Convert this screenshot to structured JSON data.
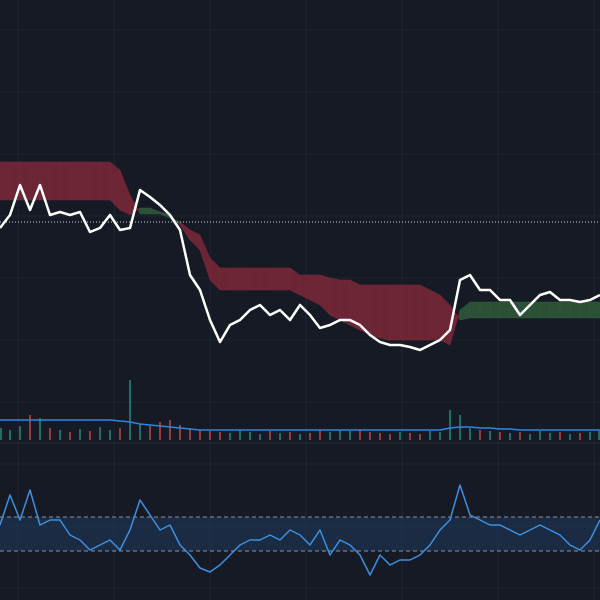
{
  "chart_data": [
    {
      "type": "line",
      "ylim": [
        0,
        440
      ],
      "series": [
        {
          "name": "price",
          "color": "#ffffff",
          "values": [
            212,
            225,
            255,
            230,
            255,
            225,
            228,
            225,
            228,
            208,
            212,
            225,
            210,
            212,
            250,
            243,
            235,
            225,
            210,
            165,
            150,
            120,
            98,
            115,
            120,
            130,
            135,
            125,
            130,
            120,
            135,
            125,
            112,
            115,
            120,
            120,
            115,
            105,
            98,
            95,
            95,
            93,
            90,
            95,
            100,
            110,
            160,
            165,
            150,
            150,
            140,
            140,
            125,
            135,
            145,
            148,
            140,
            140,
            138,
            140,
            145
          ]
        },
        {
          "name": "span_a",
          "color": "#2f5a3a",
          "values": [
            240,
            240,
            240,
            240,
            240,
            240,
            240,
            240,
            240,
            240,
            240,
            240,
            230,
            225,
            232,
            232,
            228,
            225,
            215,
            200,
            190,
            160,
            150,
            150,
            150,
            150,
            150,
            150,
            150,
            150,
            145,
            140,
            135,
            125,
            120,
            115,
            110,
            105,
            102,
            100,
            100,
            100,
            100,
            100,
            100,
            95,
            130,
            138,
            138,
            138,
            138,
            138,
            138,
            138,
            138,
            138,
            138,
            138,
            138,
            138,
            138
          ]
        },
        {
          "name": "span_b",
          "color": "#7a2838",
          "values": [
            278,
            278,
            278,
            278,
            278,
            278,
            278,
            278,
            278,
            278,
            278,
            278,
            270,
            245,
            226,
            226,
            226,
            222,
            218,
            210,
            205,
            182,
            172,
            172,
            172,
            172,
            172,
            172,
            172,
            172,
            165,
            165,
            165,
            162,
            160,
            160,
            155,
            155,
            155,
            155,
            155,
            155,
            155,
            150,
            145,
            135,
            120,
            122,
            122,
            122,
            122,
            122,
            122,
            122,
            122,
            122,
            122,
            122,
            122,
            122,
            122
          ]
        }
      ],
      "reference_line": 218
    },
    {
      "type": "bar",
      "ylim": [
        0,
        80
      ],
      "up_color": "#26a69a",
      "down_color": "#ef5350",
      "values": [
        12,
        10,
        14,
        25,
        22,
        12,
        10,
        8,
        11,
        9,
        13,
        10,
        12,
        60,
        16,
        14,
        18,
        20,
        15,
        12,
        10,
        9,
        8,
        7,
        10,
        8,
        6,
        9,
        7,
        8,
        6,
        7,
        9,
        8,
        10,
        9,
        11,
        8,
        7,
        6,
        8,
        7,
        6,
        9,
        8,
        30,
        25,
        12,
        10,
        9,
        8,
        7,
        8,
        6,
        9,
        7,
        8,
        6,
        7,
        8,
        9
      ],
      "series": [
        {
          "name": "volume_ma",
          "color": "#2e86de",
          "values": [
            20,
            20,
            20,
            20,
            20,
            20,
            20,
            20,
            20,
            20,
            20,
            20,
            19,
            18,
            16,
            15,
            14,
            13,
            12,
            11,
            10,
            10,
            10,
            10,
            10,
            10,
            10,
            10,
            10,
            10,
            10,
            10,
            10,
            10,
            10,
            10,
            10,
            10,
            10,
            10,
            10,
            10,
            10,
            10,
            10,
            12,
            13,
            13,
            12,
            12,
            11,
            11,
            10,
            10,
            10,
            10,
            10,
            10,
            10,
            10,
            10
          ]
        }
      ]
    },
    {
      "type": "line",
      "ylim": [
        0,
        150
      ],
      "levels": [
        83,
        49
      ],
      "series": [
        {
          "name": "oscillator",
          "color": "#3d8fdf",
          "values": [
            75,
            105,
            80,
            110,
            75,
            80,
            80,
            65,
            60,
            50,
            55,
            60,
            50,
            70,
            100,
            85,
            70,
            75,
            55,
            45,
            32,
            28,
            35,
            45,
            55,
            60,
            60,
            65,
            60,
            70,
            65,
            55,
            70,
            45,
            60,
            55,
            45,
            25,
            45,
            35,
            40,
            40,
            45,
            55,
            70,
            80,
            115,
            85,
            80,
            75,
            75,
            70,
            65,
            70,
            75,
            70,
            65,
            55,
            50,
            60,
            80
          ]
        }
      ]
    }
  ]
}
